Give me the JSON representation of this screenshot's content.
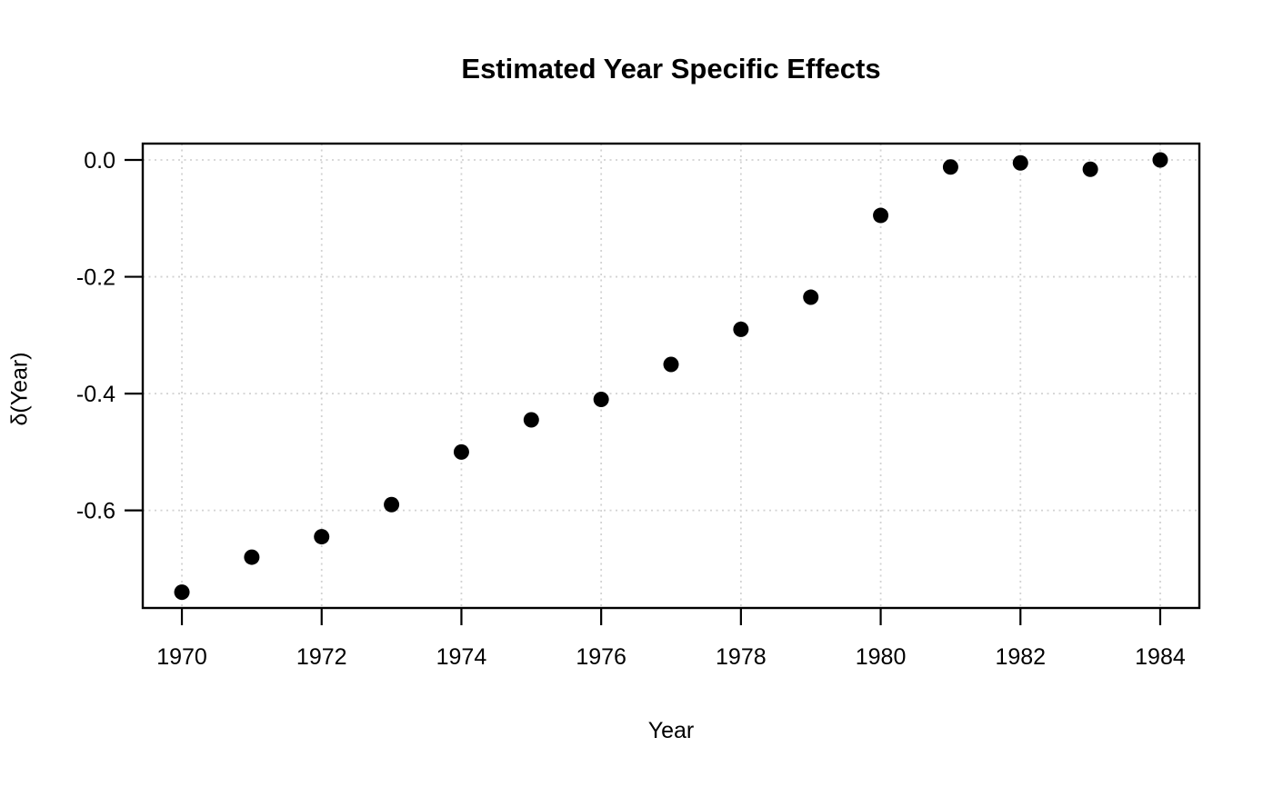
{
  "chart_data": {
    "type": "scatter",
    "title": "Estimated Year Specific Effects",
    "xlabel": "Year",
    "ylabel": "δ(Year)",
    "x": [
      1970,
      1971,
      1972,
      1973,
      1974,
      1975,
      1976,
      1977,
      1978,
      1979,
      1980,
      1981,
      1982,
      1983,
      1984
    ],
    "y": [
      -0.74,
      -0.68,
      -0.645,
      -0.59,
      -0.5,
      -0.445,
      -0.41,
      -0.35,
      -0.29,
      -0.235,
      -0.095,
      -0.012,
      -0.005,
      -0.016,
      0.0
    ],
    "x_ticks": [
      1970,
      1972,
      1974,
      1976,
      1978,
      1980,
      1982,
      1984
    ],
    "x_tick_labels": [
      "1970",
      "1972",
      "1974",
      "1976",
      "1978",
      "1980",
      "1982",
      "1984"
    ],
    "y_ticks": [
      0.0,
      -0.2,
      -0.4,
      -0.6
    ],
    "y_tick_labels": [
      "0.0",
      "-0.2",
      "-0.4",
      "-0.6"
    ],
    "xlim": [
      1969.44,
      1984.56
    ],
    "ylim": [
      -0.767,
      0.028
    ],
    "grid": true,
    "legend": false,
    "point_color": "#000000",
    "grid_color": "#d2d2d2",
    "axis_color": "#000000",
    "background_color": "#ffffff"
  }
}
